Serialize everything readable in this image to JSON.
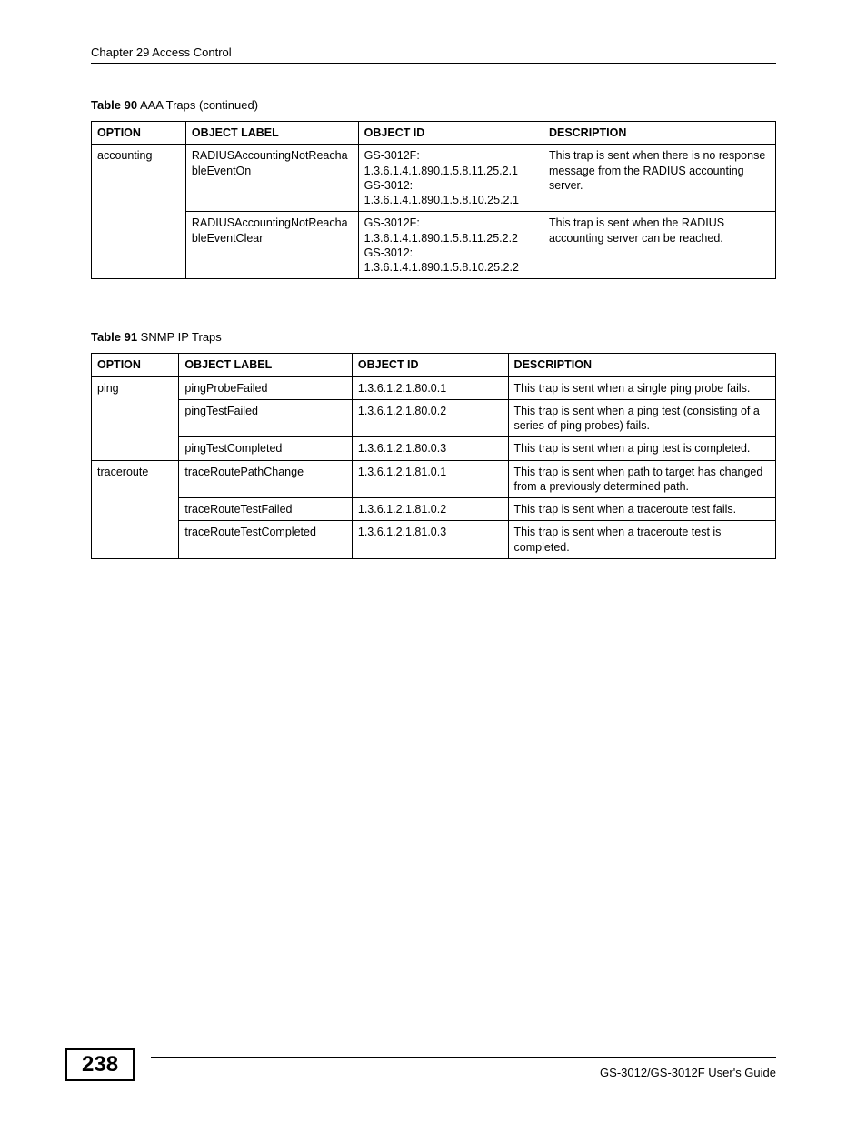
{
  "header": {
    "chapter": "Chapter 29 Access Control"
  },
  "table90": {
    "caption_bold": "Table 90",
    "caption_rest": "   AAA Traps  (continued)",
    "headers": {
      "option": "OPTION",
      "label": "OBJECT LABEL",
      "id": "OBJECT ID",
      "desc": "DESCRIPTION"
    },
    "rows": [
      {
        "option": "accounting",
        "label": "RADIUSAccountingNotReachableEventOn",
        "id": "GS-3012F: 1.3.6.1.4.1.890.1.5.8.11.25.2.1 GS-3012: 1.3.6.1.4.1.890.1.5.8.10.25.2.1",
        "desc": "This trap is sent when there is no response message from the RADIUS accounting server."
      },
      {
        "option": "",
        "label": "RADIUSAccountingNotReachableEventClear",
        "id": "GS-3012F: 1.3.6.1.4.1.890.1.5.8.11.25.2.2 GS-3012: 1.3.6.1.4.1.890.1.5.8.10.25.2.2",
        "desc": "This trap is sent when the RADIUS accounting server can be reached."
      }
    ]
  },
  "table91": {
    "caption_bold": "Table 91",
    "caption_rest": "   SNMP IP Traps",
    "headers": {
      "option": "OPTION",
      "label": "OBJECT LABEL",
      "id": "OBJECT ID",
      "desc": "DESCRIPTION"
    },
    "rows": [
      {
        "option": "ping",
        "label": "pingProbeFailed",
        "id": "1.3.6.1.2.1.80.0.1",
        "desc": "This trap is sent when a single ping probe fails."
      },
      {
        "option": "",
        "label": "pingTestFailed",
        "id": "1.3.6.1.2.1.80.0.2",
        "desc": "This trap is sent when a ping test (consisting of a series of ping probes) fails."
      },
      {
        "option": "",
        "label": "pingTestCompleted",
        "id": "1.3.6.1.2.1.80.0.3",
        "desc": "This trap is sent when a ping test is completed."
      },
      {
        "option": "traceroute",
        "label": "traceRoutePathChange",
        "id": "1.3.6.1.2.1.81.0.1",
        "desc": "This trap is sent when path to target has changed from a previously determined path."
      },
      {
        "option": "",
        "label": "traceRouteTestFailed",
        "id": "1.3.6.1.2.1.81.0.2",
        "desc": "This trap is sent when a traceroute test fails."
      },
      {
        "option": "",
        "label": "traceRouteTestCompleted",
        "id": "1.3.6.1.2.1.81.0.3",
        "desc": "This trap is sent when a traceroute test is completed."
      }
    ]
  },
  "footer": {
    "page": "238",
    "guide": "GS-3012/GS-3012F User's Guide"
  }
}
